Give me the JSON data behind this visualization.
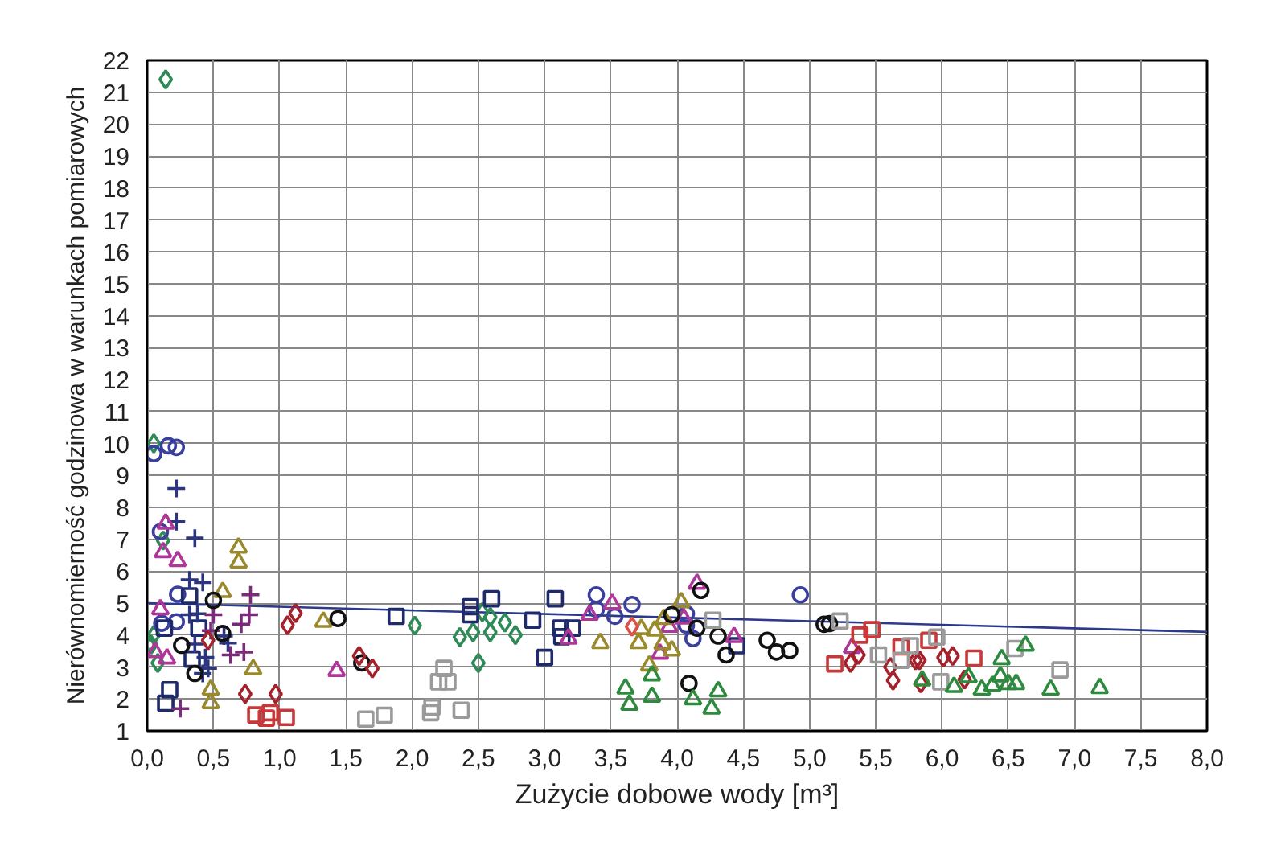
{
  "chart_data": {
    "type": "scatter",
    "xlabel": "Zużycie dobowe wody [m³]",
    "ylabel": "Nierównomierność godzinowa w warunkach pomiarowych",
    "xlim": [
      0,
      8
    ],
    "ylim": [
      1,
      22
    ],
    "xticks": [
      {
        "value": 0,
        "label": "0,0"
      },
      {
        "value": 0.5,
        "label": "0,5"
      },
      {
        "value": 1,
        "label": "1,0"
      },
      {
        "value": 1.5,
        "label": "1,5"
      },
      {
        "value": 2,
        "label": "2,0"
      },
      {
        "value": 2.5,
        "label": "2,5"
      },
      {
        "value": 3,
        "label": "3,0"
      },
      {
        "value": 3.5,
        "label": "3,5"
      },
      {
        "value": 4,
        "label": "4,0"
      },
      {
        "value": 4.5,
        "label": "4,5"
      },
      {
        "value": 5,
        "label": "5,0"
      },
      {
        "value": 5.5,
        "label": "5,5"
      },
      {
        "value": 6,
        "label": "6,0"
      },
      {
        "value": 6.5,
        "label": "6,5"
      },
      {
        "value": 7,
        "label": "7,0"
      },
      {
        "value": 7.5,
        "label": "7,5"
      },
      {
        "value": 8,
        "label": "8,0"
      }
    ],
    "yticks": [
      1,
      2,
      3,
      4,
      5,
      6,
      7,
      8,
      9,
      10,
      11,
      12,
      13,
      14,
      15,
      16,
      17,
      18,
      19,
      20,
      21,
      22
    ],
    "grid": true,
    "series": [
      {
        "color": "#2e8b57",
        "marker": "diamond",
        "x": [
          0.14,
          0.05,
          0.12,
          0.05,
          0.03,
          0.08,
          2.02,
          2.36,
          2.46,
          2.53,
          2.59,
          2.59,
          2.7,
          2.78,
          2.5
        ],
        "values": [
          21.4,
          10.0,
          6.96,
          4.0,
          3.7,
          3.13,
          4.3,
          3.94,
          4.09,
          4.72,
          4.56,
          4.09,
          4.39,
          4.0,
          3.13
        ]
      },
      {
        "color": "#3a3f9e",
        "marker": "circle",
        "x": [
          0.05,
          0.16,
          0.22,
          0.1,
          0.23,
          0.11,
          0.22,
          3.39,
          3.39,
          3.53,
          3.66,
          4.07,
          4.07,
          4.12,
          4.93
        ],
        "values": [
          9.68,
          9.93,
          9.88,
          7.24,
          5.28,
          4.37,
          4.42,
          5.26,
          4.81,
          4.59,
          4.96,
          4.67,
          4.31,
          3.89,
          5.26
        ]
      },
      {
        "color": "#1f2a6b",
        "marker": "square",
        "x": [
          0.32,
          0.13,
          0.39,
          0.34,
          0.17,
          0.14,
          1.88,
          2.44,
          2.44,
          2.6,
          2.91,
          3.0,
          3.08,
          3.12,
          3.21,
          3.13,
          4.45
        ],
        "values": [
          5.23,
          4.22,
          4.22,
          3.25,
          2.29,
          1.87,
          4.59,
          4.89,
          4.64,
          5.14,
          4.47,
          3.3,
          5.14,
          4.22,
          4.22,
          3.95,
          3.67
        ]
      },
      {
        "color": "#2b3580",
        "marker": "cross",
        "x": [
          0.22,
          0.22,
          0.36,
          0.32,
          0.42,
          0.32,
          0.38,
          0.36,
          0.58,
          0.61,
          0.44,
          0.46,
          0.42
        ],
        "values": [
          8.59,
          7.55,
          7.04,
          5.73,
          5.65,
          4.64,
          4.67,
          3.72,
          3.97,
          3.75,
          3.3,
          2.96,
          2.8
        ]
      },
      {
        "color": "#7b2a7a",
        "marker": "cross",
        "x": [
          0.78,
          0.77,
          0.71,
          0.5,
          0.48,
          0.63,
          0.73,
          0.25
        ],
        "values": [
          5.26,
          4.64,
          4.34,
          4.64,
          4.14,
          3.38,
          3.47,
          1.7
        ]
      },
      {
        "color": "#b0379a",
        "marker": "triangle",
        "x": [
          0.14,
          0.12,
          0.23,
          0.1,
          0.06,
          0.15,
          1.43,
          3.34,
          3.51,
          3.18,
          4.15,
          4.05,
          3.94,
          3.87,
          4.43,
          5.32
        ],
        "values": [
          7.49,
          6.6,
          6.32,
          4.81,
          3.47,
          3.27,
          2.88,
          4.64,
          4.98,
          3.89,
          5.61,
          4.52,
          4.26,
          3.42,
          3.94,
          3.6
        ]
      },
      {
        "color": "#9a8a2e",
        "marker": "triangle",
        "x": [
          0.69,
          0.69,
          0.57,
          1.33,
          0.8,
          0.48,
          0.48,
          3.42,
          3.71,
          3.83,
          3.9,
          4.03,
          3.73,
          3.89,
          3.96,
          3.79
        ],
        "values": [
          6.74,
          6.27,
          5.35,
          4.42,
          2.93,
          2.29,
          1.87,
          3.75,
          3.75,
          4.14,
          4.51,
          5.03,
          4.19,
          3.72,
          3.52,
          3.05
        ]
      },
      {
        "color": "#111111",
        "marker": "circle",
        "x": [
          0.5,
          0.26,
          0.36,
          0.57,
          1.44,
          1.62,
          4.18,
          3.96,
          4.15,
          4.31,
          4.37,
          4.09,
          4.68,
          4.75,
          4.85,
          5.11,
          5.15
        ],
        "values": [
          5.09,
          3.68,
          2.8,
          4.05,
          4.52,
          3.13,
          5.4,
          4.64,
          4.22,
          3.97,
          3.38,
          2.49,
          3.84,
          3.47,
          3.52,
          4.34,
          4.36
        ]
      },
      {
        "color": "#a3222b",
        "marker": "diamond",
        "x": [
          1.12,
          1.06,
          0.46,
          0.74,
          0.97,
          1.6,
          1.7,
          5.31,
          5.37,
          5.61,
          5.63,
          5.8,
          5.83,
          6.01,
          6.08,
          5.84,
          6.17
        ],
        "values": [
          4.69,
          4.31,
          3.84,
          2.16,
          2.16,
          3.35,
          2.96,
          3.13,
          3.38,
          3.0,
          2.58,
          3.21,
          3.21,
          3.3,
          3.35,
          2.49,
          2.61
        ]
      },
      {
        "color": "#c8383a",
        "marker": "square",
        "x": [
          0.82,
          0.9,
          0.93,
          1.05,
          5.19,
          5.38,
          5.47,
          5.69,
          5.9,
          6.24
        ],
        "values": [
          1.5,
          1.4,
          1.57,
          1.42,
          3.1,
          4.0,
          4.17,
          3.63,
          3.84,
          3.28
        ]
      },
      {
        "color": "#e0504a",
        "marker": "diamond",
        "x": [
          3.66
        ],
        "values": [
          4.27
        ]
      },
      {
        "color": "#9a9a9a",
        "marker": "square",
        "x": [
          1.65,
          1.79,
          2.14,
          2.15,
          2.24,
          2.2,
          2.27,
          2.37,
          4.27,
          5.23,
          5.52,
          5.69,
          5.76,
          5.96,
          5.99,
          6.55,
          6.89
        ],
        "values": [
          1.37,
          1.49,
          1.57,
          1.74,
          2.96,
          2.54,
          2.54,
          1.65,
          4.47,
          4.44,
          3.38,
          3.21,
          3.67,
          3.94,
          2.54,
          3.58,
          2.91
        ]
      },
      {
        "color": "#2e8a3e",
        "marker": "triangle",
        "x": [
          3.61,
          3.64,
          3.81,
          3.81,
          4.12,
          4.31,
          4.26,
          5.85,
          6.09,
          6.2,
          6.3,
          6.38,
          6.44,
          6.45,
          6.5,
          6.56,
          6.63,
          6.82,
          7.19
        ],
        "values": [
          2.33,
          1.82,
          2.74,
          2.07,
          1.99,
          2.24,
          1.7,
          2.58,
          2.38,
          2.68,
          2.29,
          2.41,
          2.71,
          3.25,
          2.47,
          2.47,
          3.67,
          2.29,
          2.34
        ]
      },
      {
        "type": "line",
        "color": "#2b3a8a",
        "marker": "none",
        "x": [
          0,
          8
        ],
        "values": [
          5.0,
          4.1
        ]
      }
    ]
  }
}
